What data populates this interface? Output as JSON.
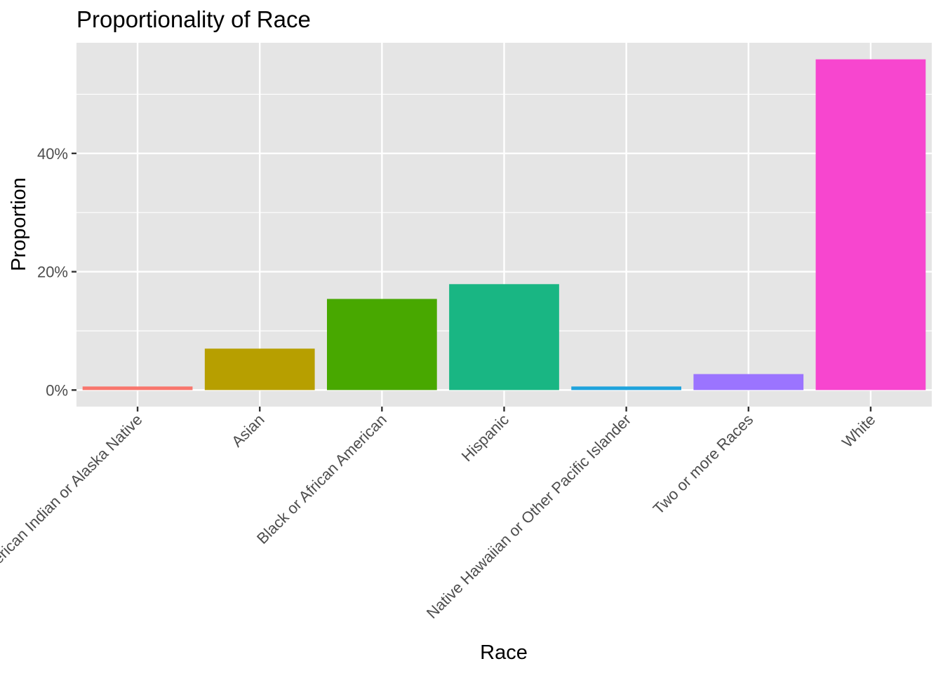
{
  "chart_data": {
    "type": "bar",
    "title": "Proportionality of Race",
    "xlabel": "Race",
    "ylabel": "Proportion",
    "categories": [
      "American Indian or Alaska Native",
      "Asian",
      "Black or African American",
      "Hispanic",
      "Native Hawaiian or Other Pacific Islander",
      "Two or more Races",
      "White"
    ],
    "values": [
      0.6,
      7.0,
      15.4,
      17.9,
      0.6,
      2.7,
      55.9
    ],
    "value_unit": "%",
    "colors": [
      "#F8766D",
      "#B79F00",
      "#48A800",
      "#19B683",
      "#1FA3DC",
      "#9B74FF",
      "#F746CF"
    ],
    "y_ticks": [
      0,
      20,
      40
    ],
    "y_tick_labels": [
      "0%",
      "20%",
      "40%"
    ],
    "ylim": [
      -2.8,
      58.7
    ],
    "grid": true,
    "legend": "none",
    "panel_background": "#E5E5E5"
  }
}
